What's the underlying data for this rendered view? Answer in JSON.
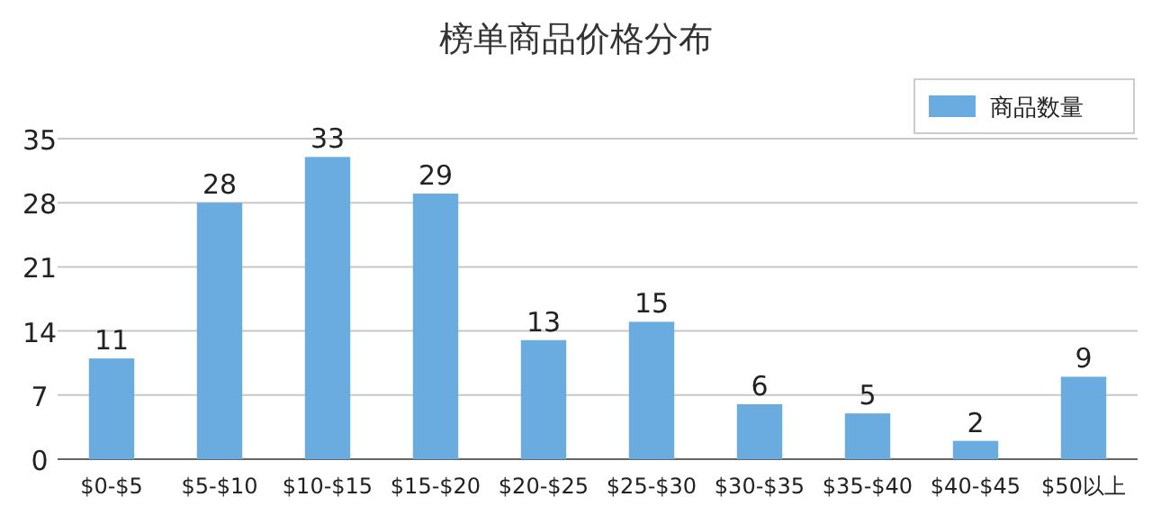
{
  "chart_data": {
    "type": "bar",
    "title": "榜单商品价格分布",
    "categories": [
      "$0-$5",
      "$5-$10",
      "$10-$15",
      "$15-$20",
      "$20-$25",
      "$25-$30",
      "$30-$35",
      "$35-$40",
      "$40-$45",
      "$50以上"
    ],
    "series": [
      {
        "name": "商品数量",
        "color": "#6aacdf",
        "values": [
          11,
          28,
          33,
          29,
          13,
          15,
          6,
          5,
          2,
          9
        ]
      }
    ],
    "ylim": [
      0,
      35
    ],
    "yticks": [
      0,
      7,
      14,
      21,
      28,
      35
    ],
    "grid": "y",
    "legend": "top right",
    "data_labels": true
  }
}
